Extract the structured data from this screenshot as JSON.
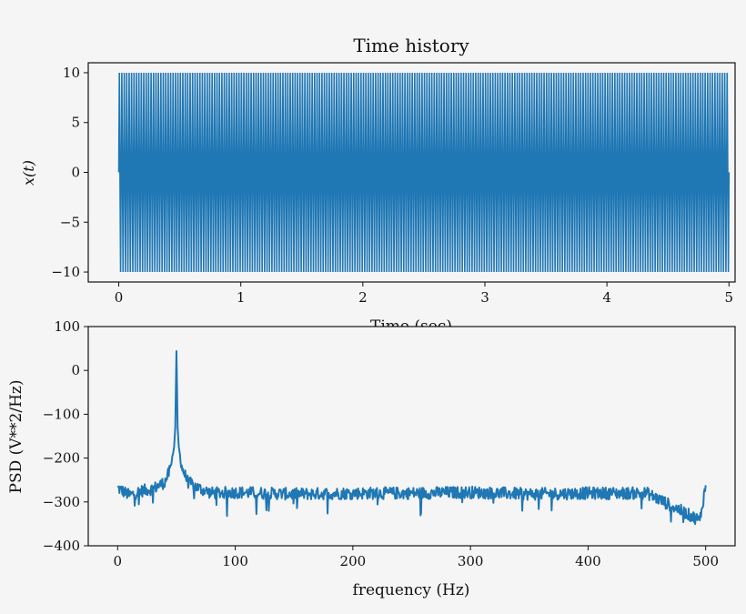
{
  "chart_data": [
    {
      "type": "line",
      "title": "Time history",
      "xlabel": "Time (sec)",
      "ylabel": "x(t)",
      "xlim": [
        -0.25,
        5.05
      ],
      "ylim": [
        -11,
        11
      ],
      "xticks": [
        0,
        1,
        2,
        3,
        4,
        5
      ],
      "yticks": [
        -10,
        -5,
        0,
        5,
        10
      ],
      "xtick_labels": [
        "0",
        "1",
        "2",
        "3",
        "4",
        "5"
      ],
      "ytick_labels": [
        "−10",
        "−5",
        "0",
        "5",
        "10"
      ],
      "grid": false,
      "color": "#1f77b4",
      "series": [
        {
          "signal": "sine",
          "amplitude": 10,
          "frequency_hz": 50,
          "t_start": 0,
          "t_end": 5
        }
      ]
    },
    {
      "type": "line",
      "title": "",
      "xlabel": "frequency (Hz)",
      "ylabel": "PSD (V**2/Hz)",
      "xlim": [
        -25,
        525
      ],
      "ylim": [
        -400,
        100
      ],
      "xticks": [
        0,
        100,
        200,
        300,
        400,
        500
      ],
      "yticks": [
        -400,
        -300,
        -200,
        -100,
        0,
        100
      ],
      "xtick_labels": [
        "0",
        "100",
        "200",
        "300",
        "400",
        "500"
      ],
      "ytick_labels": [
        "−400",
        "−300",
        "−200",
        "−100",
        "0",
        "100"
      ],
      "grid": false,
      "color": "#1f77b4",
      "series": [
        {
          "peak_frequency_hz": 50,
          "peak_value": 44,
          "noise_floor_db": -280,
          "x": [
            0,
            10,
            20,
            30,
            40,
            45,
            48,
            49,
            50,
            51,
            52,
            55,
            60,
            70,
            80,
            100,
            150,
            200,
            250,
            300,
            350,
            400,
            450,
            495,
            500
          ],
          "y": [
            -268,
            -285,
            -275,
            -270,
            -255,
            -225,
            -175,
            -130,
            44,
            -130,
            -175,
            -225,
            -255,
            -270,
            -280,
            -278,
            -282,
            -280,
            -280,
            -278,
            -282,
            -280,
            -280,
            -342,
            -262
          ]
        }
      ]
    }
  ]
}
